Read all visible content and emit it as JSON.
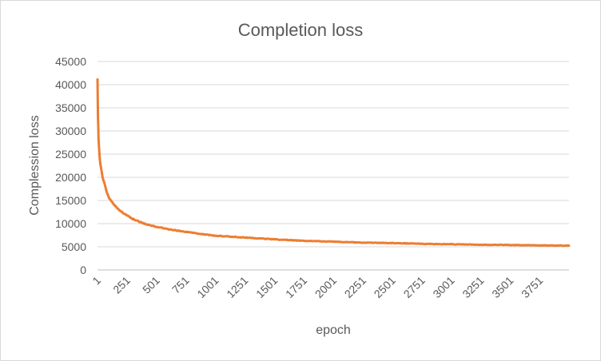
{
  "chart_data": {
    "type": "line",
    "title": "Completion loss",
    "xlabel": "epoch",
    "ylabel": "Complession loss",
    "ylim": [
      0,
      45000
    ],
    "y_ticks": [
      "0",
      "5000",
      "10000",
      "15000",
      "20000",
      "25000",
      "30000",
      "35000",
      "40000",
      "45000"
    ],
    "x_range": [
      1,
      4000
    ],
    "x_ticks": [
      "1",
      "251",
      "501",
      "751",
      "1001",
      "1251",
      "1501",
      "1751",
      "2001",
      "2251",
      "2501",
      "2751",
      "3001",
      "3251",
      "3501",
      "3751"
    ],
    "grid": true,
    "legend": "none",
    "series": [
      {
        "color": "#ED7D31",
        "x": [
          1,
          5,
          10,
          20,
          30,
          50,
          75,
          100,
          150,
          200,
          251,
          300,
          400,
          501,
          600,
          751,
          900,
          1001,
          1251,
          1501,
          1751,
          2001,
          2251,
          2501,
          2751,
          3001,
          3251,
          3501,
          3751,
          4000
        ],
        "y": [
          41000,
          33000,
          28000,
          24000,
          22000,
          19500,
          17200,
          15500,
          13800,
          12600,
          11800,
          11000,
          10000,
          9300,
          8800,
          8200,
          7700,
          7400,
          7000,
          6600,
          6300,
          6100,
          5900,
          5800,
          5650,
          5550,
          5450,
          5400,
          5300,
          5250
        ]
      }
    ]
  }
}
